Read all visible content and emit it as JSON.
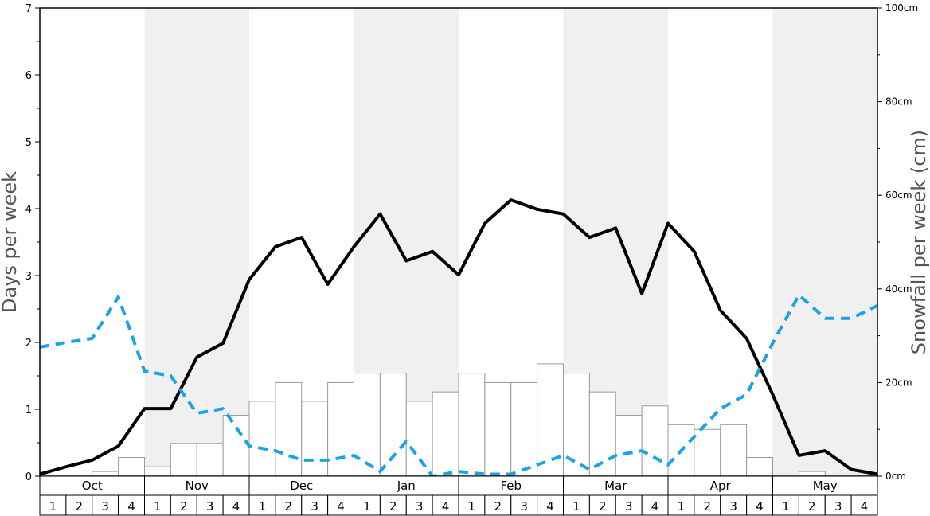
{
  "chart_data": {
    "type": "bar",
    "title": "",
    "ylabel_left": "Days per week",
    "ylabel_right": "Snowfall per week (cm)",
    "ylim_left": [
      0,
      7
    ],
    "ylim_right": [
      0,
      100
    ],
    "left_ticks": [
      "0",
      "1",
      "2",
      "3",
      "4",
      "5",
      "6",
      "7"
    ],
    "right_ticks": [
      "0cm",
      "20cm",
      "40cm",
      "60cm",
      "80cm",
      "100cm"
    ],
    "months": [
      "Oct",
      "Nov",
      "Dec",
      "Jan",
      "Feb",
      "Mar",
      "Apr",
      "May"
    ],
    "weeks": [
      "1",
      "2",
      "3",
      "4"
    ],
    "colors": {
      "bars_fill": "#ffffff",
      "bars_stroke": "#999999",
      "band_shade": "#f0f0f0",
      "solid_line": "#000000",
      "dashed_line": "#1aa3e8"
    },
    "series": [
      {
        "type": "bar",
        "axis": "right",
        "values": [
          0,
          0,
          1,
          4,
          2,
          7,
          7,
          13,
          16,
          20,
          16,
          20,
          22,
          22,
          16,
          18,
          22,
          20,
          20,
          24,
          22,
          18,
          13,
          15,
          11,
          10,
          11,
          4,
          0,
          1,
          0,
          0
        ]
      },
      {
        "type": "line",
        "style": "solid",
        "axis": "left",
        "values": [
          0.03,
          0.14,
          0.24,
          0.45,
          1.01,
          1.01,
          1.78,
          1.99,
          2.94,
          3.43,
          3.57,
          2.87,
          3.43,
          3.92,
          3.22,
          3.36,
          3.01,
          3.78,
          4.13,
          3.99,
          3.92,
          3.57,
          3.71,
          2.73,
          3.78,
          3.36,
          2.48,
          2.06,
          1.22,
          0.31,
          0.38,
          0.1,
          0.03
        ]
      },
      {
        "type": "line",
        "style": "dashed",
        "axis": "left",
        "values": [
          1.93,
          2.0,
          2.06,
          2.68,
          1.57,
          1.5,
          0.94,
          1.01,
          0.45,
          0.38,
          0.24,
          0.24,
          0.31,
          0.07,
          0.52,
          0.0,
          0.07,
          0.03,
          0.03,
          0.17,
          0.31,
          0.1,
          0.31,
          0.38,
          0.17,
          0.59,
          1.01,
          1.22,
          1.99,
          2.71,
          2.36,
          2.36,
          2.55
        ]
      }
    ]
  }
}
